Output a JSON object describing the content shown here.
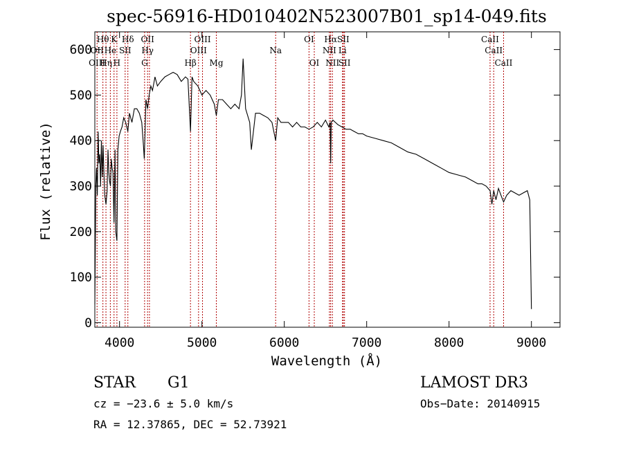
{
  "chart_data": {
    "type": "line",
    "title": "spec-56916-HD010402N523007B01_sp14-049.fits",
    "xlabel": "Wavelength (Å)",
    "ylabel": "Flux (relative)",
    "xlim": [
      3700,
      9100
    ],
    "ylim": [
      -10,
      650
    ],
    "x_ticks": [
      4000,
      5000,
      6000,
      7000,
      8000,
      9000
    ],
    "y_ticks": [
      0,
      100,
      200,
      300,
      400,
      500,
      600
    ],
    "series": [
      {
        "name": "spectrum",
        "x": [
          3700,
          3705,
          3712,
          3720,
          3730,
          3740,
          3750,
          3760,
          3770,
          3780,
          3790,
          3800,
          3810,
          3820,
          3835,
          3850,
          3860,
          3870,
          3880,
          3890,
          3900,
          3910,
          3920,
          3933,
          3945,
          3955,
          3968,
          3980,
          3995,
          4010,
          4030,
          4050,
          4075,
          4101,
          4120,
          4150,
          4180,
          4210,
          4240,
          4270,
          4290,
          4300,
          4310,
          4320,
          4340,
          4360,
          4380,
          4400,
          4430,
          4460,
          4500,
          4550,
          4600,
          4650,
          4700,
          4750,
          4800,
          4830,
          4861,
          4880,
          4900,
          4950,
          5000,
          5050,
          5100,
          5150,
          5175,
          5200,
          5250,
          5300,
          5350,
          5400,
          5450,
          5480,
          5500,
          5530,
          5580,
          5600,
          5650,
          5700,
          5750,
          5800,
          5850,
          5895,
          5920,
          5960,
          6000,
          6050,
          6100,
          6150,
          6200,
          6250,
          6300,
          6350,
          6400,
          6450,
          6500,
          6540,
          6556,
          6563,
          6570,
          6590,
          6620,
          6650,
          6700,
          6750,
          6800,
          6850,
          6900,
          6950,
          7000,
          7100,
          7200,
          7300,
          7400,
          7500,
          7600,
          7700,
          7800,
          7900,
          8000,
          8100,
          8200,
          8300,
          8350,
          8400,
          8450,
          8498,
          8520,
          8542,
          8570,
          8600,
          8630,
          8662,
          8700,
          8750,
          8800,
          8850,
          8900,
          8950,
          8980,
          9000
        ],
        "values": [
          40,
          150,
          300,
          340,
          280,
          420,
          350,
          370,
          300,
          400,
          320,
          390,
          330,
          280,
          260,
          290,
          380,
          330,
          310,
          300,
          360,
          340,
          330,
          220,
          380,
          200,
          180,
          380,
          410,
          420,
          430,
          450,
          440,
          420,
          460,
          440,
          470,
          470,
          460,
          440,
          390,
          360,
          420,
          490,
          470,
          500,
          520,
          510,
          540,
          520,
          530,
          540,
          545,
          550,
          545,
          530,
          540,
          535,
          420,
          540,
          530,
          520,
          500,
          510,
          500,
          480,
          455,
          490,
          490,
          480,
          470,
          480,
          470,
          500,
          580,
          470,
          440,
          380,
          460,
          460,
          455,
          450,
          440,
          400,
          450,
          440,
          440,
          440,
          430,
          440,
          430,
          430,
          425,
          430,
          440,
          430,
          445,
          430,
          440,
          350,
          440,
          445,
          440,
          435,
          430,
          425,
          425,
          420,
          415,
          415,
          410,
          405,
          400,
          395,
          385,
          375,
          370,
          360,
          350,
          340,
          330,
          325,
          320,
          310,
          305,
          305,
          300,
          290,
          260,
          290,
          270,
          295,
          280,
          265,
          280,
          290,
          285,
          280,
          285,
          290,
          270,
          30
        ]
      }
    ],
    "annotations": [
      {
        "label": "Hθ",
        "wavelength": 3798,
        "row": 1
      },
      {
        "label": "K",
        "wavelength": 3933,
        "row": 1
      },
      {
        "label": "Hδ",
        "wavelength": 4101,
        "row": 1
      },
      {
        "label": "OII",
        "wavelength": 4340,
        "row": 1
      },
      {
        "label": "OIII",
        "wavelength": 5007,
        "row": 1
      },
      {
        "label": "OI",
        "wavelength": 6300,
        "row": 1
      },
      {
        "label": "Hα",
        "wavelength": 6563,
        "row": 1
      },
      {
        "label": "SII",
        "wavelength": 6716,
        "row": 1
      },
      {
        "label": "CaII",
        "wavelength": 8498,
        "row": 1
      },
      {
        "label": "OII",
        "wavelength": 3727,
        "row": 2
      },
      {
        "label": "He",
        "wavelength": 3888,
        "row": 2
      },
      {
        "label": "SII",
        "wavelength": 4068,
        "row": 2
      },
      {
        "label": "Hγ",
        "wavelength": 4340,
        "row": 2
      },
      {
        "label": "OIII",
        "wavelength": 4959,
        "row": 2
      },
      {
        "label": "NII",
        "wavelength": 6548,
        "row": 2
      },
      {
        "label": "Li",
        "wavelength": 6707,
        "row": 2
      },
      {
        "label": "CaII",
        "wavelength": 8542,
        "row": 2
      },
      {
        "label": "OIII",
        "wavelength": 3727,
        "row": 3
      },
      {
        "label": "Hη",
        "wavelength": 3835,
        "row": 3
      },
      {
        "label": "H",
        "wavelength": 3968,
        "row": 3
      },
      {
        "label": "G",
        "wavelength": 4304,
        "row": 3
      },
      {
        "label": "Hβ",
        "wavelength": 4861,
        "row": 3
      },
      {
        "label": "Mg",
        "wavelength": 5175,
        "row": 3
      },
      {
        "label": "OI",
        "wavelength": 6364,
        "row": 3
      },
      {
        "label": "NII",
        "wavelength": 6584,
        "row": 3
      },
      {
        "label": "SII",
        "wavelength": 6731,
        "row": 3
      },
      {
        "label": "CaII",
        "wavelength": 8662,
        "row": 3
      },
      {
        "label": "Na",
        "wavelength": 5895,
        "row": 2
      }
    ],
    "line_markers": [
      3727,
      3798,
      3835,
      3888,
      3933,
      3968,
      4068,
      4101,
      4304,
      4340,
      4363,
      4861,
      4959,
      5007,
      5175,
      5895,
      6300,
      6364,
      6548,
      6563,
      6584,
      6707,
      6716,
      6731,
      8498,
      8542,
      8662
    ],
    "grid": false
  },
  "info": {
    "object_class": "STAR",
    "subclass": "G1",
    "survey": "LAMOST DR3",
    "cz": "cz = −23.6 ± 5.0 km/s",
    "obs_date": "Obs−Date: 20140915",
    "coords": "RA =  12.37865, DEC =  52.73921"
  },
  "colors": {
    "line_marker": "#b00000",
    "spectrum": "#000000"
  }
}
